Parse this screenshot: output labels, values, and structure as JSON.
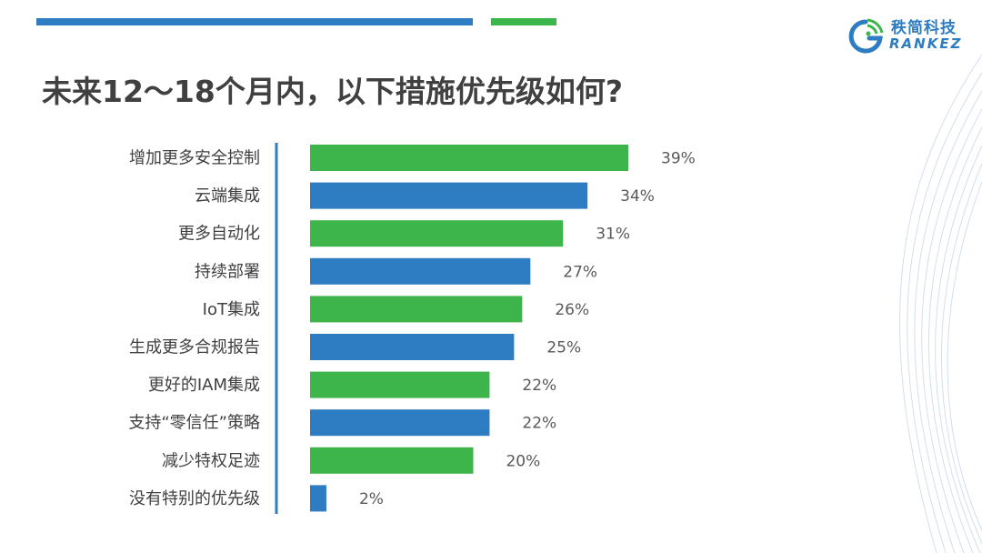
{
  "header": {
    "title": "未来12～18个月内，以下措施优先级如何?"
  },
  "logo": {
    "name_cn": "秩简科技",
    "name_en": "RANKEZ"
  },
  "colors": {
    "green": "#3DB54A",
    "blue": "#2E7CC1",
    "text": "#404040",
    "axis": "#2E7CC1"
  },
  "chart_data": {
    "type": "bar",
    "orientation": "horizontal",
    "categories": [
      "增加更多安全控制",
      "云端集成",
      "更多自动化",
      "持续部署",
      "IoT集成",
      "生成更多合规报告",
      "更好的IAM集成",
      "支持“零信任”策略",
      "减少特权足迹",
      "没有特别的优先级"
    ],
    "values": [
      39,
      34,
      31,
      27,
      26,
      25,
      22,
      22,
      20,
      2
    ],
    "value_labels": [
      "39%",
      "34%",
      "31%",
      "27%",
      "26%",
      "25%",
      "22%",
      "22%",
      "20%",
      "2%"
    ],
    "bar_colors": [
      "green",
      "blue",
      "green",
      "blue",
      "green",
      "blue",
      "green",
      "blue",
      "green",
      "blue"
    ],
    "title": "未来12～18个月内，以下措施优先级如何?",
    "xlabel": "",
    "ylabel": "",
    "xlim": [
      0,
      39
    ],
    "grid": false,
    "legend": "none"
  }
}
